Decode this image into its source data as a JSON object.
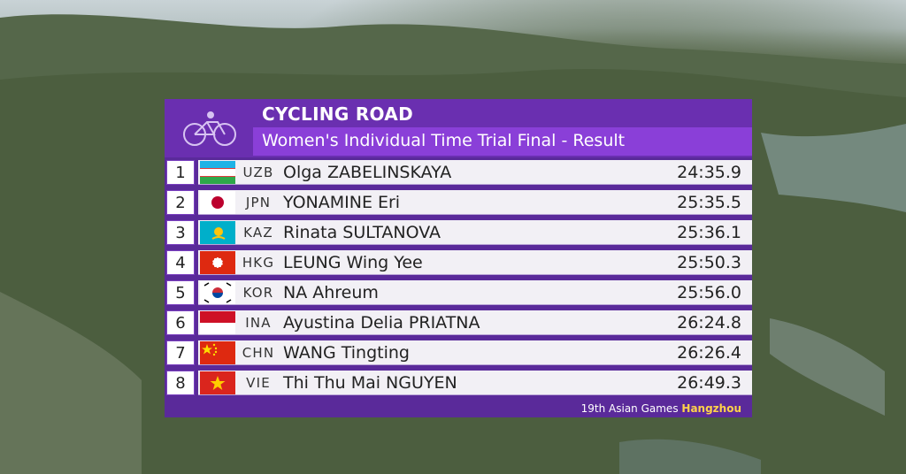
{
  "event": {
    "sport": "CYCLING ROAD",
    "subtitle": "Women's Individual Time Trial Final - Result"
  },
  "results": [
    {
      "rank": "1",
      "code": "UZB",
      "name": "Olga ZABELINSKAYA",
      "time": "24:35.9",
      "flag": "uzbekistan-flag"
    },
    {
      "rank": "2",
      "code": "JPN",
      "name": "YONAMINE Eri",
      "time": "25:35.5",
      "flag": "japan-flag"
    },
    {
      "rank": "3",
      "code": "KAZ",
      "name": "Rinata SULTANOVA",
      "time": "25:36.1",
      "flag": "kazakhstan-flag"
    },
    {
      "rank": "4",
      "code": "HKG",
      "name": "LEUNG Wing Yee",
      "time": "25:50.3",
      "flag": "hong-kong-flag"
    },
    {
      "rank": "5",
      "code": "KOR",
      "name": "NA Ahreum",
      "time": "25:56.0",
      "flag": "korea-flag"
    },
    {
      "rank": "6",
      "code": "INA",
      "name": "Ayustina Delia PRIATNA",
      "time": "26:24.8",
      "flag": "indonesia-flag"
    },
    {
      "rank": "7",
      "code": "CHN",
      "name": "WANG Tingting",
      "time": "26:26.4",
      "flag": "china-flag"
    },
    {
      "rank": "8",
      "code": "VIE",
      "name": "Thi Thu Mai NGUYEN",
      "time": "26:49.3",
      "flag": "vietnam-flag"
    }
  ],
  "footer": {
    "prefix": "19th Asian Games",
    "city": "Hangzhou"
  },
  "colors": {
    "header": "#6a2fb0",
    "subtitle_bar": "#8a3fd8",
    "accent": "#ffd24a"
  }
}
